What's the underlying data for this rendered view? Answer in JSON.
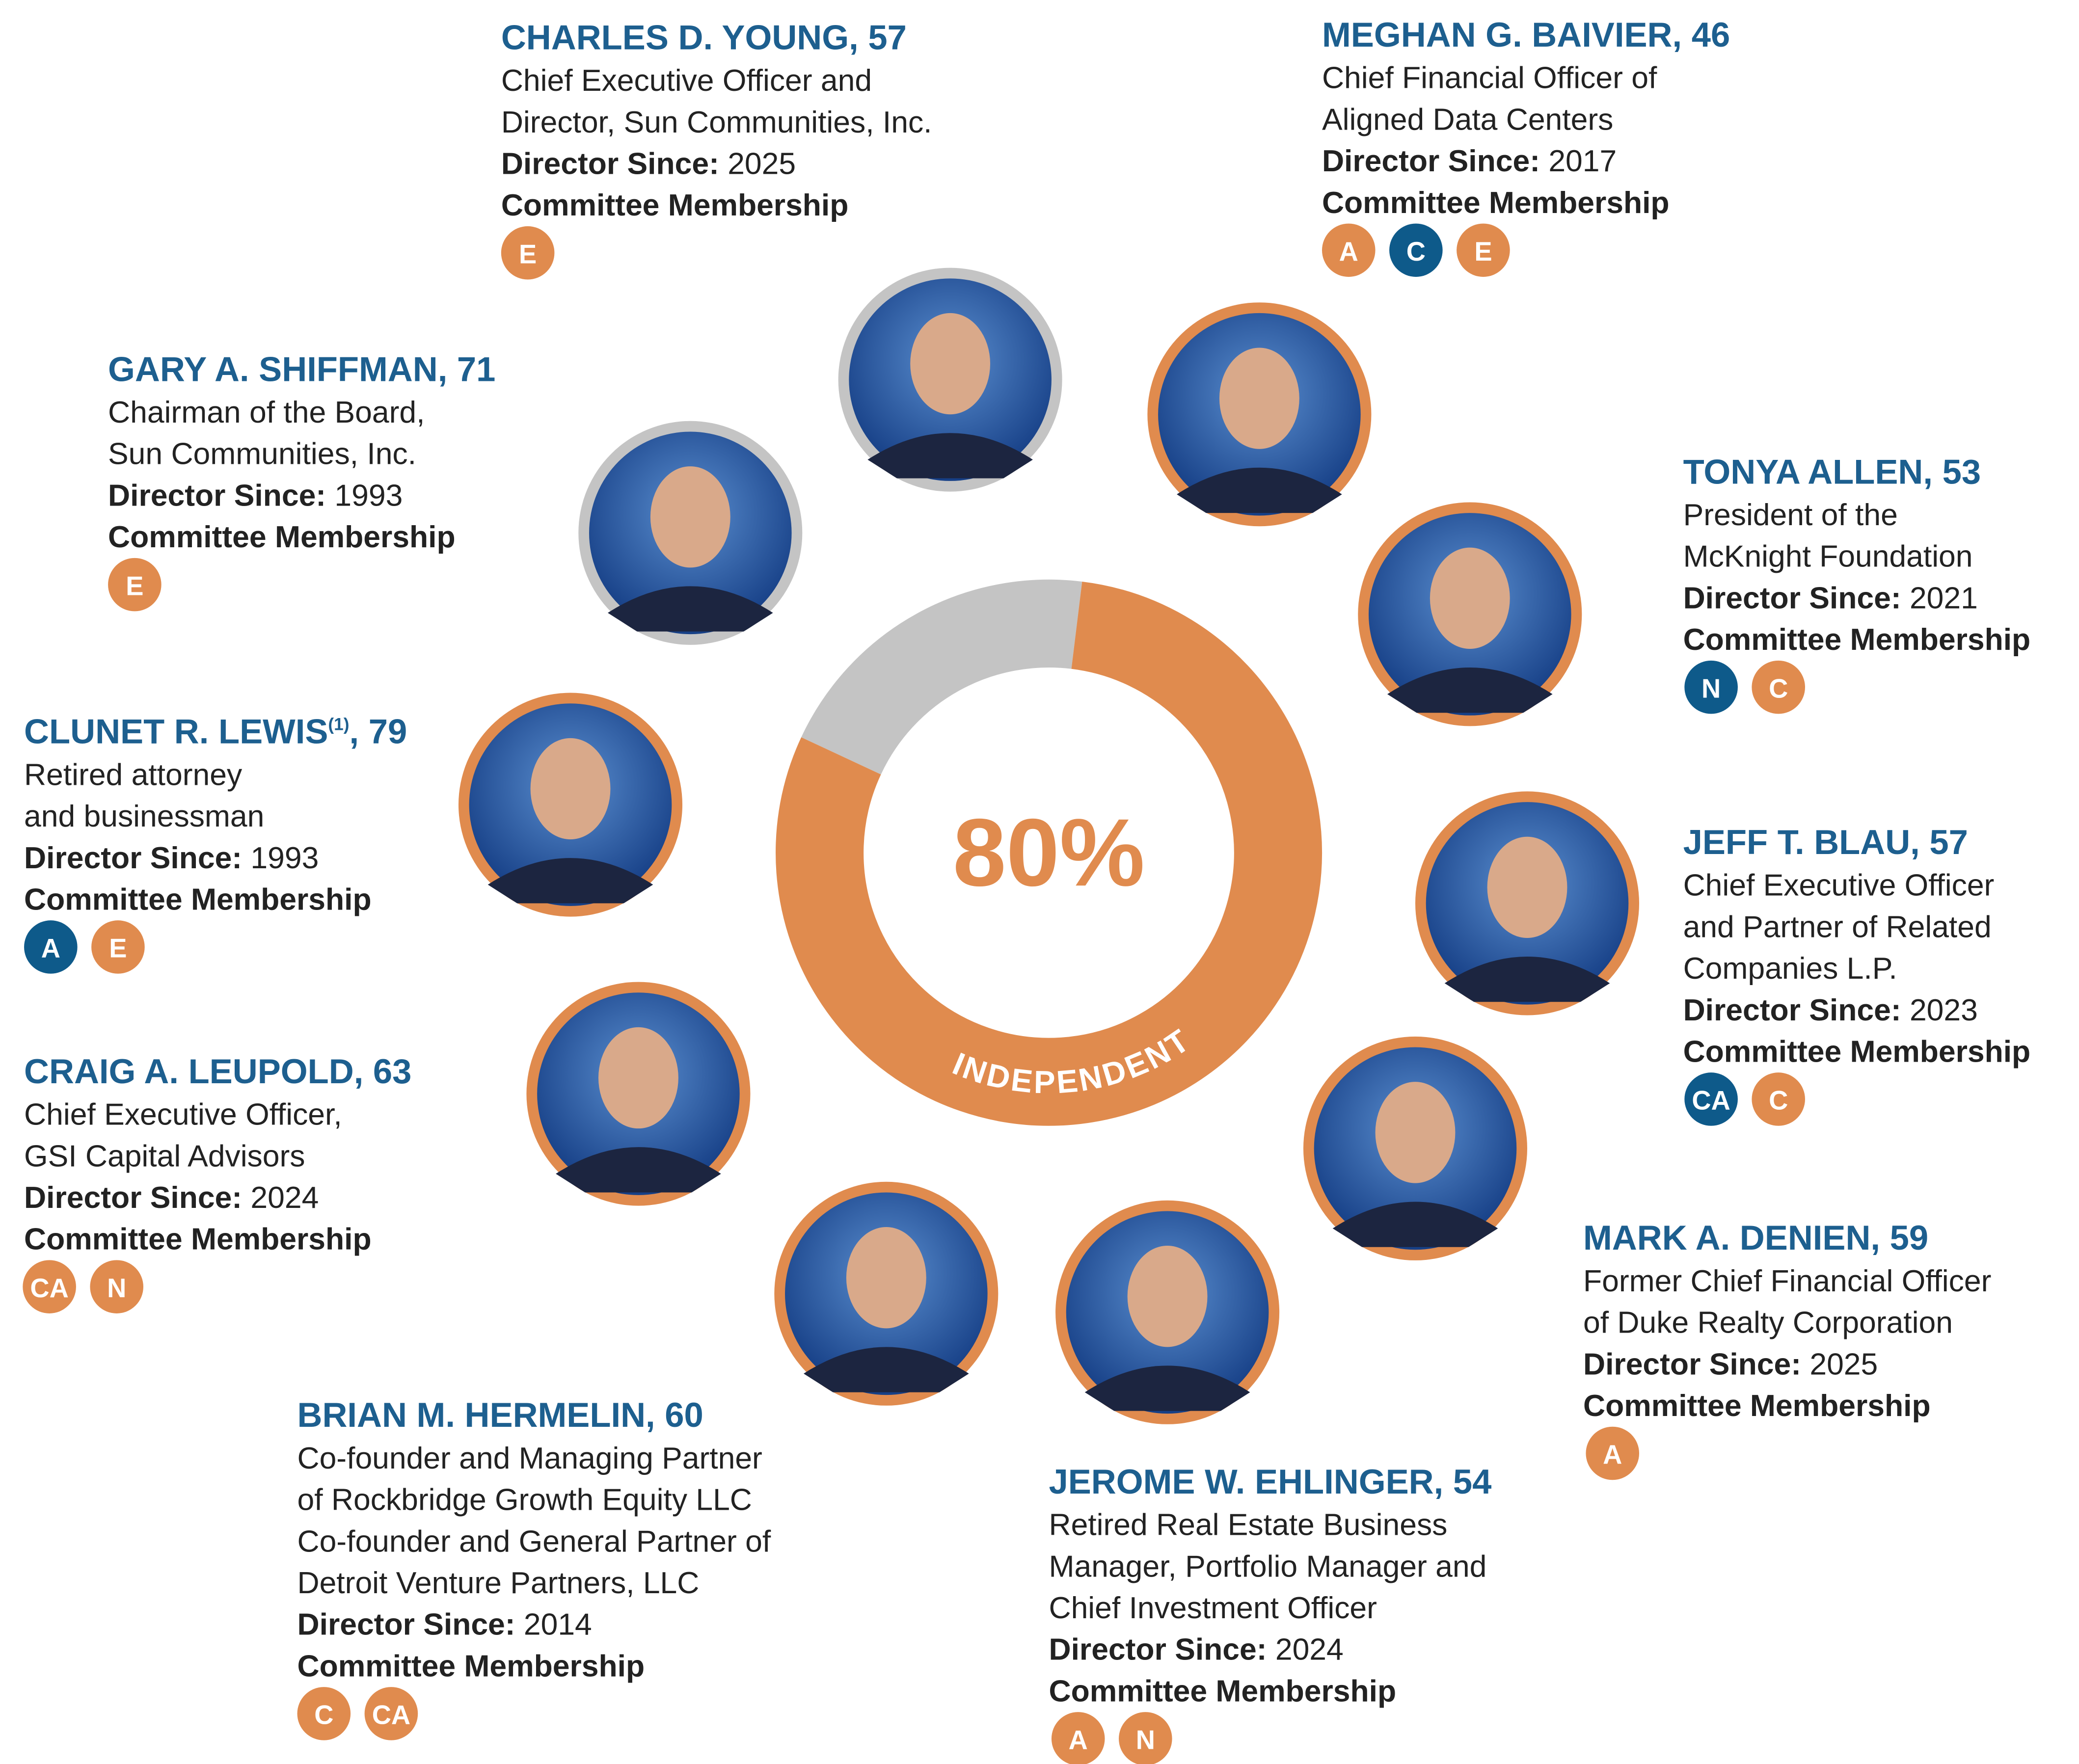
{
  "donut": {
    "percent": {
      "value": 80,
      "label": "80%"
    },
    "label": "INDEPENDENT"
  },
  "labels": {
    "since": "Director Since:",
    "committees": "Committee Membership"
  },
  "directors": [
    {
      "name": "CHARLES D. YOUNG, 57",
      "title": [
        "Chief Executive Officer and",
        "Director, Sun Communities, Inc."
      ],
      "since": 2025,
      "independent": false,
      "committees": [
        {
          "code": "E",
          "color": "#e08b4e"
        }
      ]
    },
    {
      "name": "MEGHAN G. BAIVIER, 46",
      "title": [
        "Chief Financial Officer of",
        "Aligned Data Centers"
      ],
      "since": 2017,
      "independent": true,
      "committees": [
        {
          "code": "A",
          "color": "#e08b4e"
        },
        {
          "code": "C",
          "color": "#0e5a8a"
        },
        {
          "code": "E",
          "color": "#e08b4e"
        }
      ]
    },
    {
      "name": "GARY A. SHIFFMAN, 71",
      "title": [
        "Chairman of the Board,",
        "Sun Communities, Inc."
      ],
      "since": 1993,
      "independent": false,
      "committees": [
        {
          "code": "E",
          "color": "#e08b4e"
        }
      ]
    },
    {
      "name": "TONYA ALLEN, 53",
      "title": [
        "President of the",
        "McKnight Foundation"
      ],
      "since": 2021,
      "independent": true,
      "committees": [
        {
          "code": "N",
          "color": "#0e5a8a"
        },
        {
          "code": "C",
          "color": "#e08b4e"
        }
      ]
    },
    {
      "name": "CLUNET R. LEWIS",
      "footnote": "(1)",
      "name_end": ", 79",
      "title": [
        "Retired attorney",
        "and businessman"
      ],
      "since": 1993,
      "independent": true,
      "committees": [
        {
          "code": "A",
          "color": "#0e5a8a"
        },
        {
          "code": "E",
          "color": "#e08b4e"
        }
      ]
    },
    {
      "name": "JEFF T. BLAU, 57",
      "title": [
        "Chief Executive Officer",
        "and Partner of Related",
        "Companies L.P."
      ],
      "since": 2023,
      "independent": true,
      "committees": [
        {
          "code": "CA",
          "color": "#0e5a8a"
        },
        {
          "code": "C",
          "color": "#e08b4e"
        }
      ]
    },
    {
      "name": "CRAIG A. LEUPOLD, 63",
      "title": [
        "Chief Executive Officer,",
        "GSI Capital Advisors"
      ],
      "since": 2024,
      "independent": true,
      "committees": [
        {
          "code": "CA",
          "color": "#e08b4e"
        },
        {
          "code": "N",
          "color": "#e08b4e"
        }
      ]
    },
    {
      "name": "MARK A. DENIEN, 59",
      "title": [
        "Former Chief Financial Officer",
        "of Duke Realty Corporation"
      ],
      "since": 2025,
      "independent": true,
      "committees": [
        {
          "code": "A",
          "color": "#e08b4e"
        }
      ]
    },
    {
      "name": "BRIAN M. HERMELIN, 60",
      "title": [
        "Co-founder and Managing Partner",
        "of Rockbridge Growth Equity LLC",
        "Co-founder and General Partner of",
        "Detroit Venture Partners, LLC"
      ],
      "since": 2014,
      "independent": true,
      "committees": [
        {
          "code": "C",
          "color": "#e08b4e"
        },
        {
          "code": "CA",
          "color": "#e08b4e"
        }
      ]
    },
    {
      "name": "JEROME W. EHLINGER, 54",
      "title": [
        "Retired Real Estate Business",
        "Manager, Portfolio Manager and",
        "Chief Investment Officer"
      ],
      "since": 2024,
      "independent": true,
      "committees": [
        {
          "code": "A",
          "color": "#e08b4e"
        },
        {
          "code": "N",
          "color": "#e08b4e"
        }
      ]
    }
  ]
}
